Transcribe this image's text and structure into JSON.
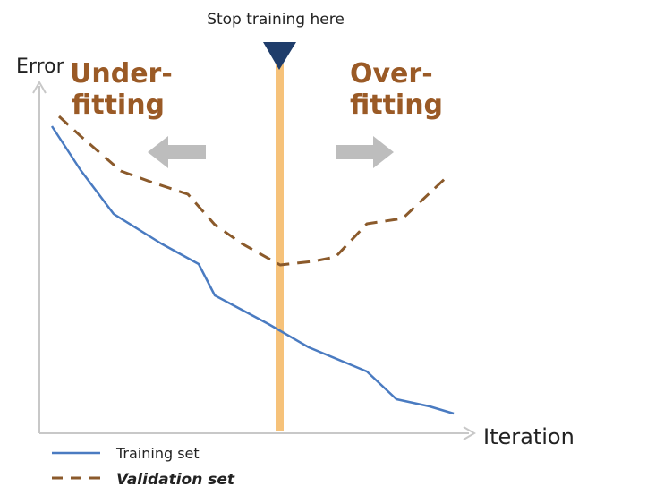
{
  "title": "Stop training here",
  "axes": {
    "y_label": "Error",
    "x_label": "Iteration"
  },
  "regions": {
    "left": [
      "Under-",
      "fitting"
    ],
    "right": [
      "Over-",
      "fitting"
    ]
  },
  "legend": [
    {
      "label": "Training set",
      "style": "solid",
      "color": "#4a7bc1"
    },
    {
      "label": "Validation set",
      "style": "dashed",
      "color": "#8b5a2b"
    }
  ],
  "colors": {
    "training": "#4a7bc1",
    "validation": "#8b5a2b",
    "stop_line": "#f6c27a",
    "marker": "#1f3d6b",
    "arrow": "#bdbdbd",
    "region_text": "#9a5a26"
  }
}
